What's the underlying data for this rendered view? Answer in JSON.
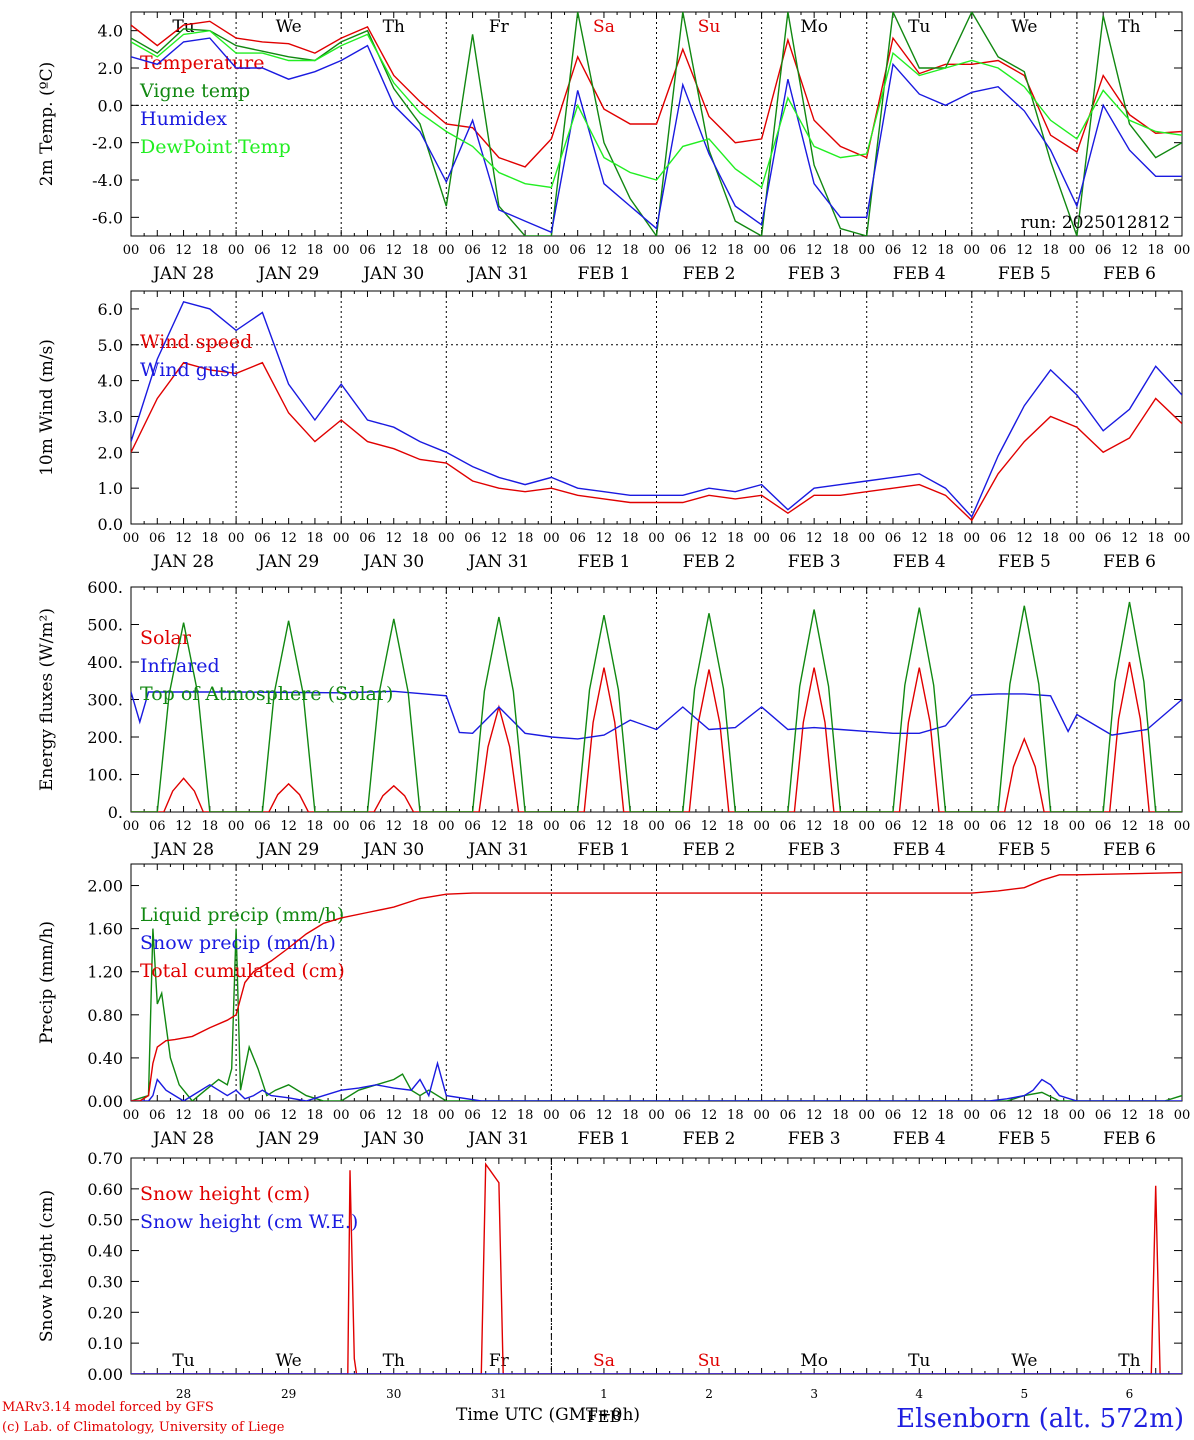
{
  "header": {
    "credit_line1": "MARv3.14 model forced by GFS",
    "credit_line2": "(c) Lab. of Climatology, University of Liege",
    "station": "Elsenborn (alt. 572m)",
    "x_title": "Time UTC (GMT+0h)",
    "run": "run: 2025012812",
    "feb_label": "FEB"
  },
  "axis": {
    "hour_ticks": [
      "00",
      "06",
      "12",
      "18"
    ],
    "date_labels": [
      "JAN 28",
      "JAN 29",
      "JAN 30",
      "JAN 31",
      "FEB  1",
      "FEB  2",
      "FEB  3",
      "FEB  4",
      "FEB  5",
      "FEB  6"
    ],
    "day_names": [
      "Tu",
      "We",
      "Th",
      "Fr",
      "Sa",
      "Su",
      "Mo",
      "Tu",
      "We",
      "Th"
    ],
    "day_numbers": [
      "28",
      "29",
      "30",
      "31",
      "1",
      "2",
      "3",
      "4",
      "5",
      "6"
    ],
    "weekend_color": "#e00000"
  },
  "chart_data": [
    {
      "type": "line",
      "ylabel": "2m Temp. (ºC)",
      "ylim": [
        -7.0,
        5.0
      ],
      "yticks": [
        "4.0",
        "2.0",
        "0.0",
        "-2.0",
        "-4.0",
        "-6.0"
      ],
      "ytick_values": [
        4,
        2,
        0,
        -2,
        -4,
        -6
      ],
      "ref_line": 0,
      "x": [
        0,
        6,
        12,
        18,
        24,
        30,
        36,
        42,
        48,
        54,
        60,
        66,
        72,
        78,
        84,
        90,
        96,
        102,
        108,
        114,
        120,
        126,
        132,
        138,
        144,
        150,
        156,
        162,
        168,
        174,
        180,
        186,
        192,
        198,
        204,
        210,
        216,
        222,
        228,
        234,
        240
      ],
      "series": [
        {
          "name": "Temperature",
          "color": "#e00000",
          "values": [
            4.3,
            3.2,
            4.3,
            4.5,
            3.6,
            3.4,
            3.3,
            2.8,
            3.6,
            4.2,
            1.6,
            0.2,
            -1.0,
            -1.2,
            -2.8,
            -3.3,
            -1.8,
            2.6,
            -0.2,
            -1.0,
            -1.0,
            3.0,
            -0.6,
            -2.0,
            -1.8,
            3.5,
            -0.8,
            -2.2,
            -2.8,
            3.6,
            1.7,
            2.2,
            2.2,
            2.4,
            1.6,
            -1.6,
            -2.5,
            1.6,
            -0.5,
            -1.5,
            -1.4
          ]
        },
        {
          "name": "Vigne temp",
          "color": "#118811",
          "values": [
            3.6,
            2.8,
            4.1,
            4.0,
            3.2,
            2.9,
            2.6,
            2.4,
            3.4,
            4.0,
            0.9,
            -1.0,
            -5.4,
            3.8,
            -5.4,
            -7.0,
            -7.0,
            5.0,
            -2.0,
            -5.0,
            -7.0,
            5.0,
            -2.4,
            -6.2,
            -7.0,
            5.0,
            -3.2,
            -6.6,
            -7.0,
            5.0,
            2.0,
            2.0,
            5.0,
            2.6,
            1.8,
            -3.0,
            -7.0,
            4.8,
            -1.0,
            -2.8,
            -2.0
          ]
        },
        {
          "name": "Humidex",
          "color": "#1a1ae0",
          "values": [
            2.6,
            2.2,
            3.4,
            3.6,
            2.0,
            2.0,
            1.4,
            1.8,
            2.4,
            3.2,
            0.0,
            -1.4,
            -4.1,
            -0.8,
            -5.6,
            -6.2,
            -6.8,
            0.8,
            -4.2,
            -5.4,
            -6.6,
            1.1,
            -2.6,
            -5.4,
            -6.4,
            1.4,
            -4.2,
            -6.0,
            -6.0,
            2.2,
            0.6,
            0.0,
            0.7,
            1.0,
            -0.3,
            -2.4,
            -5.4,
            0.0,
            -2.4,
            -3.8,
            -3.8
          ]
        },
        {
          "name": "DewPoint Temp",
          "color": "#22ee22",
          "values": [
            3.4,
            2.6,
            3.8,
            4.0,
            2.8,
            2.8,
            2.4,
            2.4,
            3.2,
            3.8,
            1.2,
            -0.4,
            -1.4,
            -2.2,
            -3.6,
            -4.2,
            -4.4,
            0.0,
            -2.8,
            -3.6,
            -4.0,
            -2.2,
            -1.8,
            -3.4,
            -4.4,
            0.4,
            -2.2,
            -2.8,
            -2.6,
            2.8,
            1.6,
            2.0,
            2.4,
            2.0,
            1.0,
            -0.8,
            -1.8,
            0.8,
            -0.8,
            -1.4,
            -1.6
          ]
        }
      ]
    },
    {
      "type": "line",
      "ylabel": "10m Wind (m/s)",
      "ylim": [
        0.0,
        6.5
      ],
      "yticks": [
        "6.0",
        "5.0",
        "4.0",
        "3.0",
        "2.0",
        "1.0",
        "0.0"
      ],
      "ytick_values": [
        6,
        5,
        4,
        3,
        2,
        1,
        0
      ],
      "ref_line": 5,
      "x": [
        0,
        6,
        12,
        18,
        24,
        30,
        36,
        42,
        48,
        54,
        60,
        66,
        72,
        78,
        84,
        90,
        96,
        102,
        108,
        114,
        120,
        126,
        132,
        138,
        144,
        150,
        156,
        162,
        168,
        174,
        180,
        186,
        192,
        198,
        204,
        210,
        216,
        222,
        228,
        234,
        240
      ],
      "series": [
        {
          "name": "Wind speed",
          "color": "#e00000",
          "values": [
            2.0,
            3.5,
            4.5,
            4.3,
            4.2,
            4.5,
            3.1,
            2.3,
            2.9,
            2.3,
            2.1,
            1.8,
            1.7,
            1.2,
            1.0,
            0.9,
            1.0,
            0.8,
            0.7,
            0.6,
            0.6,
            0.6,
            0.8,
            0.7,
            0.8,
            0.3,
            0.8,
            0.8,
            0.9,
            1.0,
            1.1,
            0.8,
            0.1,
            1.4,
            2.3,
            3.0,
            2.7,
            2.0,
            2.4,
            3.5,
            2.8
          ]
        },
        {
          "name": "Wind gust",
          "color": "#1a1ae0",
          "values": [
            2.3,
            4.6,
            6.2,
            6.0,
            5.4,
            5.9,
            3.9,
            2.9,
            3.9,
            2.9,
            2.7,
            2.3,
            2.0,
            1.6,
            1.3,
            1.1,
            1.3,
            1.0,
            0.9,
            0.8,
            0.8,
            0.8,
            1.0,
            0.9,
            1.1,
            0.4,
            1.0,
            1.1,
            1.2,
            1.3,
            1.4,
            1.0,
            0.2,
            1.9,
            3.3,
            4.3,
            3.6,
            2.6,
            3.2,
            4.4,
            3.6
          ]
        }
      ]
    },
    {
      "type": "line",
      "ylabel": "Energy fluxes (W/m²)",
      "ylim": [
        0,
        600
      ],
      "yticks": [
        "600.",
        "500.",
        "400.",
        "300.",
        "200.",
        "100.",
        "0."
      ],
      "ytick_values": [
        600,
        500,
        400,
        300,
        200,
        100,
        0
      ],
      "series": [
        {
          "name": "Solar",
          "color": "#e00000",
          "peaks": [
            {
              "h": 12,
              "v": 90
            },
            {
              "h": 36,
              "v": 75
            },
            {
              "h": 60,
              "v": 70
            },
            {
              "h": 84,
              "v": 280
            },
            {
              "h": 108,
              "v": 385
            },
            {
              "h": 132,
              "v": 380
            },
            {
              "h": 156,
              "v": 385
            },
            {
              "h": 180,
              "v": 385
            },
            {
              "h": 204,
              "v": 195
            },
            {
              "h": 228,
              "v": 400
            }
          ]
        },
        {
          "name": "Infrared",
          "color": "#1a1ae0",
          "x": [
            0,
            2,
            4,
            24,
            48,
            60,
            72,
            75,
            78,
            84,
            90,
            96,
            102,
            108,
            114,
            120,
            126,
            132,
            138,
            144,
            150,
            156,
            162,
            168,
            174,
            180,
            186,
            192,
            198,
            204,
            210,
            214,
            216,
            224,
            232,
            240
          ],
          "values": [
            320,
            240,
            320,
            320,
            318,
            322,
            310,
            212,
            210,
            280,
            210,
            200,
            195,
            205,
            245,
            220,
            280,
            220,
            225,
            280,
            220,
            225,
            220,
            215,
            210,
            210,
            230,
            312,
            315,
            315,
            310,
            215,
            260,
            205,
            220,
            300
          ]
        },
        {
          "name": "Top of Atmosphere (Solar)",
          "color": "#118811",
          "peaks": [
            {
              "h": 12,
              "v": 505
            },
            {
              "h": 36,
              "v": 510
            },
            {
              "h": 60,
              "v": 515
            },
            {
              "h": 84,
              "v": 520
            },
            {
              "h": 108,
              "v": 525
            },
            {
              "h": 132,
              "v": 530
            },
            {
              "h": 156,
              "v": 540
            },
            {
              "h": 180,
              "v": 545
            },
            {
              "h": 204,
              "v": 550
            },
            {
              "h": 228,
              "v": 560
            }
          ]
        }
      ]
    },
    {
      "type": "line",
      "ylabel": "Precip (mm/h)",
      "ylim": [
        0.0,
        2.2
      ],
      "yticks": [
        "2.00",
        "1.60",
        "1.20",
        "0.80",
        "0.40",
        "0.00"
      ],
      "ytick_values": [
        2.0,
        1.6,
        1.2,
        0.8,
        0.4,
        0.0
      ],
      "series": [
        {
          "name": "Liquid precip (mm/h)",
          "color": "#118811",
          "x": [
            0,
            4,
            5,
            6,
            7,
            9,
            11,
            14,
            17,
            20,
            22,
            23,
            24,
            25,
            27,
            29,
            31,
            33,
            36,
            40,
            44,
            48,
            52,
            56,
            60,
            62,
            64,
            66,
            68,
            72,
            80,
            200,
            204,
            208,
            212,
            236,
            240
          ],
          "values": [
            0,
            0.05,
            1.6,
            0.9,
            1.0,
            0.4,
            0.15,
            0.0,
            0.1,
            0.2,
            0.15,
            0.3,
            1.6,
            0.1,
            0.5,
            0.3,
            0.05,
            0.1,
            0.15,
            0.05,
            0.0,
            0.0,
            0.1,
            0.15,
            0.2,
            0.25,
            0.1,
            0.05,
            0.1,
            0.0,
            0.0,
            0.0,
            0.05,
            0.08,
            0.0,
            0.0,
            0.05
          ]
        },
        {
          "name": "Snow precip (mm/h)",
          "color": "#1a1ae0",
          "x": [
            0,
            4,
            5,
            6,
            8,
            10,
            12,
            14,
            18,
            22,
            24,
            26,
            28,
            30,
            32,
            36,
            40,
            44,
            48,
            52,
            56,
            60,
            64,
            66,
            68,
            70,
            72,
            80,
            196,
            200,
            204,
            206,
            208,
            210,
            212,
            216,
            224,
            240
          ],
          "values": [
            0,
            0,
            0.05,
            0.2,
            0.1,
            0.05,
            0.0,
            0.05,
            0.15,
            0.05,
            0.1,
            0.02,
            0.05,
            0.1,
            0.05,
            0.03,
            0.0,
            0.05,
            0.1,
            0.12,
            0.15,
            0.12,
            0.1,
            0.2,
            0.05,
            0.35,
            0.05,
            0.0,
            0.0,
            0.02,
            0.05,
            0.1,
            0.2,
            0.15,
            0.05,
            0.0,
            0.0,
            0.0
          ]
        },
        {
          "name": "Total cumulated (cm)",
          "color": "#e00000",
          "x": [
            0,
            2,
            4,
            5,
            6,
            8,
            10,
            14,
            18,
            22,
            24,
            26,
            28,
            32,
            36,
            40,
            44,
            48,
            54,
            60,
            66,
            72,
            78,
            84,
            96,
            192,
            198,
            204,
            208,
            212,
            216,
            240
          ],
          "values": [
            0,
            0.0,
            0.05,
            0.35,
            0.5,
            0.56,
            0.57,
            0.6,
            0.68,
            0.75,
            0.8,
            1.1,
            1.2,
            1.3,
            1.42,
            1.55,
            1.65,
            1.7,
            1.75,
            1.8,
            1.88,
            1.92,
            1.93,
            1.93,
            1.93,
            1.93,
            1.95,
            1.98,
            2.05,
            2.1,
            2.1,
            2.12
          ]
        }
      ]
    },
    {
      "type": "line",
      "ylabel": "Snow height (cm)",
      "ylim": [
        0.0,
        0.7
      ],
      "yticks": [
        "0.70",
        "0.60",
        "0.50",
        "0.40",
        "0.30",
        "0.20",
        "0.10",
        "0.00"
      ],
      "ytick_values": [
        0.7,
        0.6,
        0.5,
        0.4,
        0.3,
        0.2,
        0.1,
        0.0
      ],
      "series": [
        {
          "name": "Snow height (cm)",
          "color": "#e00000",
          "x": [
            0,
            49.5,
            50,
            51,
            51.5,
            80,
            81,
            82,
            84,
            85,
            86,
            233,
            234,
            235,
            240
          ],
          "values": [
            0,
            0,
            0.66,
            0.05,
            0,
            0,
            0.68,
            0.66,
            0.62,
            0,
            0,
            0,
            0.61,
            0,
            0
          ]
        },
        {
          "name": "Snow height (cm W.E.)",
          "color": "#1a1ae0",
          "x": [
            0,
            240
          ],
          "values": [
            0,
            0
          ]
        }
      ]
    }
  ]
}
